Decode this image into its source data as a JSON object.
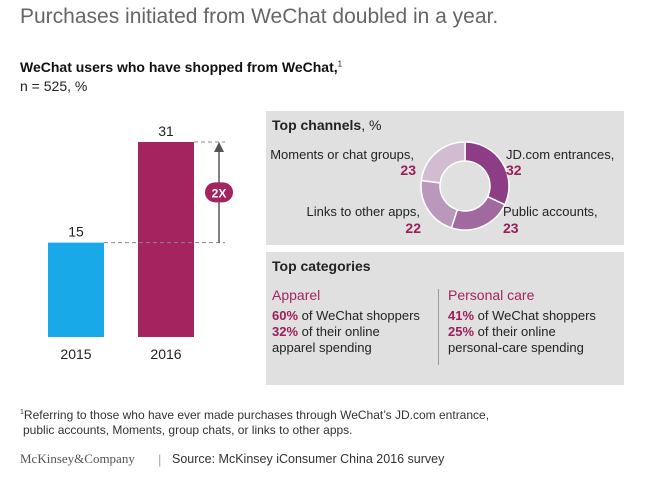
{
  "title": "Purchases initiated from WeChat doubled in a year.",
  "subtitle": {
    "text": "WeChat users who have shopped from WeChat,",
    "footnote_mark": "1",
    "n_label": "n = 525, %"
  },
  "chart_data": [
    {
      "type": "bar",
      "categories": [
        "2015",
        "2016"
      ],
      "values": [
        15,
        31
      ],
      "colors": [
        "#17a9e8",
        "#a3245f"
      ],
      "growth_label": "2X",
      "ylim": [
        0,
        31
      ]
    },
    {
      "type": "pie",
      "title": "Top channels",
      "title_unit": ", %",
      "slices": [
        {
          "label": "JD.com entrances,",
          "value": 32,
          "color": "#8c3d86"
        },
        {
          "label": "Public accounts,",
          "value": 23,
          "color": "#a06aa0"
        },
        {
          "label": "Links to other apps,",
          "value": 22,
          "color": "#ba98bb"
        },
        {
          "label": "Moments or chat groups,",
          "value": 23,
          "color": "#d2bcd2"
        }
      ]
    }
  ],
  "categories_panel": {
    "title": "Top categories",
    "apparel": {
      "heading": "Apparel",
      "line1_pct": "60%",
      "line1_text": "of WeChat shoppers",
      "line2_pct": "32%",
      "line2_text": "of their online",
      "line3_text": "apparel spending"
    },
    "personal_care": {
      "heading": "Personal care",
      "line1_pct": "41%",
      "line1_text": "of WeChat shoppers",
      "line2_pct": "25%",
      "line2_text": "of their online",
      "line3_text": "personal-care spending"
    }
  },
  "footnote": {
    "mark": "1",
    "line1": "Referring to those who have ever made purchases through WeChat’s JD.com entrance,",
    "line2": "public accounts, Moments, group chats, or links to other apps."
  },
  "brand": "McKinsey&Company",
  "separator": "|",
  "source": "Source: McKinsey iConsumer China 2016 survey"
}
